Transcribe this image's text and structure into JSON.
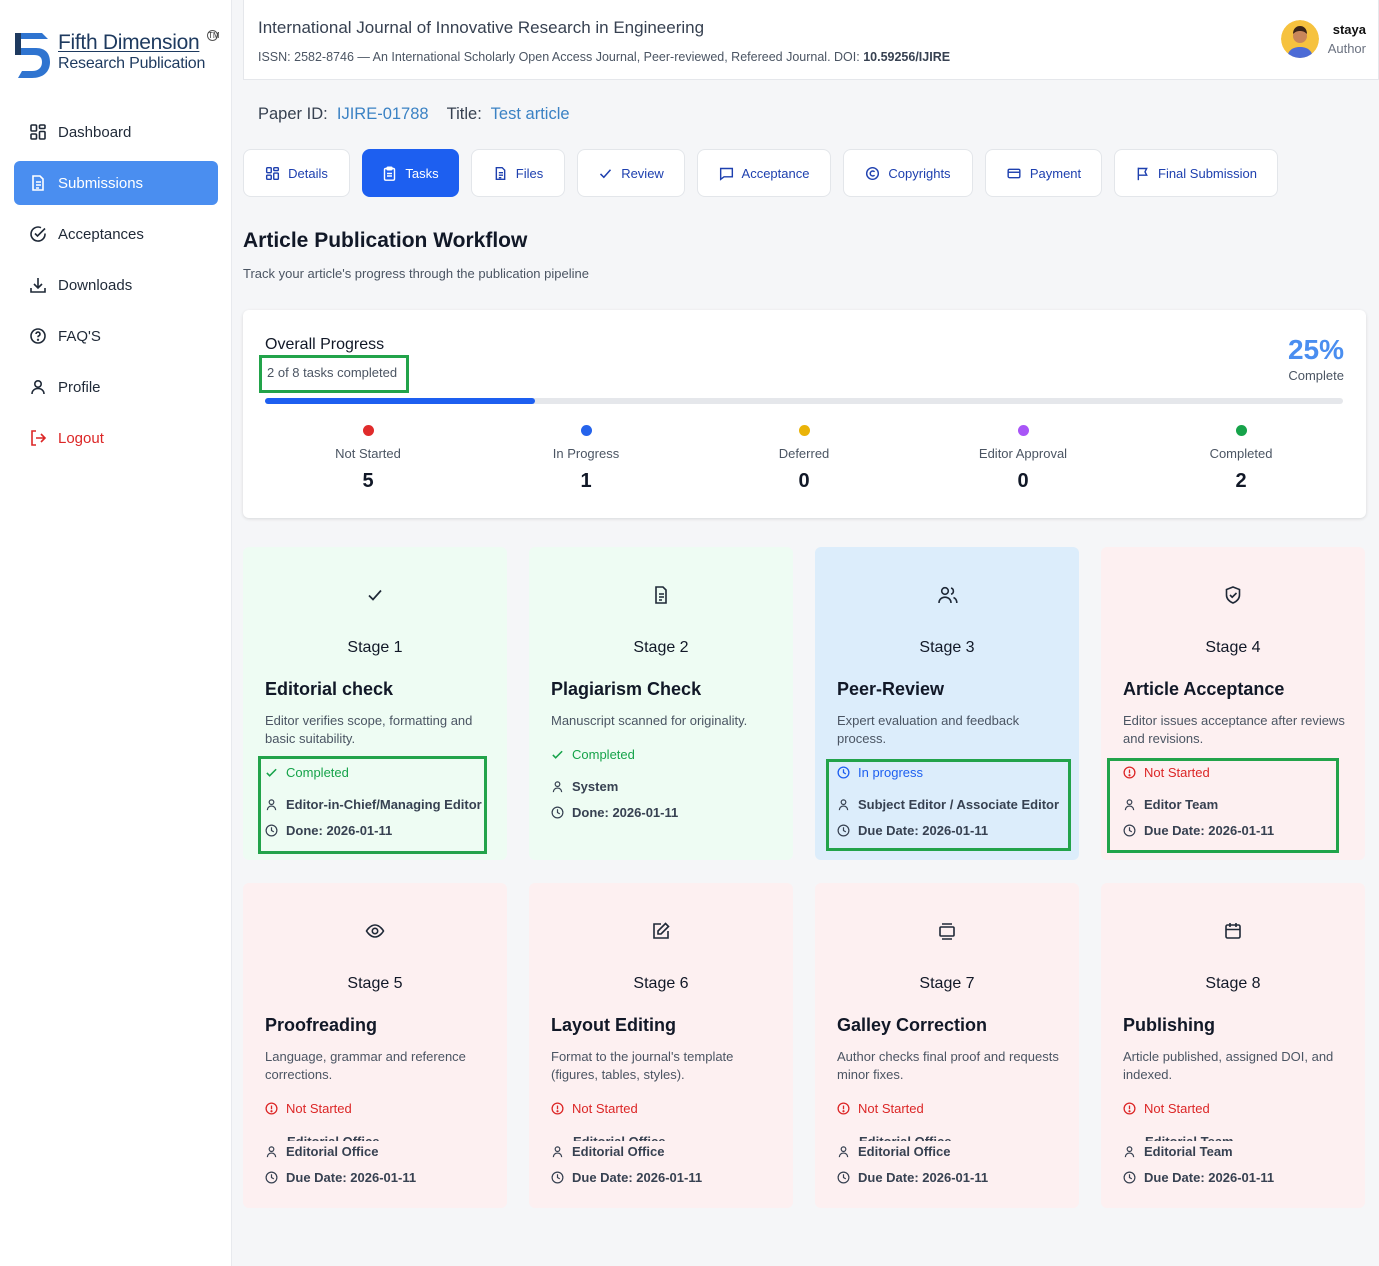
{
  "brand": {
    "name_line1": "Fifth Dimension",
    "name_line2": "Research Publication",
    "trademark": "TM",
    "colors": {
      "primary": "#1e3a5f",
      "accent": "#4a8ef0"
    }
  },
  "sidebar": {
    "items": [
      {
        "label": "Dashboard",
        "icon": "grid-icon"
      },
      {
        "label": "Submissions",
        "icon": "document-icon",
        "active": true
      },
      {
        "label": "Acceptances",
        "icon": "check-circle-icon"
      },
      {
        "label": "Downloads",
        "icon": "download-icon"
      },
      {
        "label": "FAQ'S",
        "icon": "question-circle-icon"
      },
      {
        "label": "Profile",
        "icon": "user-icon"
      },
      {
        "label": "Logout",
        "icon": "logout-icon"
      }
    ]
  },
  "header": {
    "journal_title": "International Journal of Innovative Research in Engineering",
    "journal_sub": "ISSN: 2582-8746 — An International Scholarly Open Access Journal, Peer-reviewed, Refereed Journal. DOI: ",
    "doi": "10.59256/IJIRE",
    "user_name": "staya",
    "user_role": "Author"
  },
  "paper": {
    "id_label": "Paper ID:",
    "id_value": "IJIRE-01788",
    "title_label": "Title:",
    "title_value": "Test article"
  },
  "tabs": [
    {
      "label": "Details",
      "icon": "grid-icon"
    },
    {
      "label": "Tasks",
      "icon": "clipboard-icon",
      "active": true
    },
    {
      "label": "Files",
      "icon": "file-icon"
    },
    {
      "label": "Review",
      "icon": "check-icon"
    },
    {
      "label": "Acceptance",
      "icon": "message-icon"
    },
    {
      "label": "Copyrights",
      "icon": "copyright-icon"
    },
    {
      "label": "Payment",
      "icon": "credit-card-icon"
    },
    {
      "label": "Final Submission",
      "icon": "flag-icon"
    }
  ],
  "workflow": {
    "title": "Article Publication Workflow",
    "subtitle": "Track your article's progress through the publication pipeline"
  },
  "progress": {
    "title": "Overall Progress",
    "count_text": "2 of 8 tasks completed",
    "percent_text": "25%",
    "percent_value": 0.25,
    "complete_label": "Complete",
    "stats": [
      {
        "label": "Not Started",
        "value": "5",
        "color": "#e02b2b"
      },
      {
        "label": "In Progress",
        "value": "1",
        "color": "#2563eb"
      },
      {
        "label": "Deferred",
        "value": "0",
        "color": "#eab308"
      },
      {
        "label": "Editor Approval",
        "value": "0",
        "color": "#a855f7"
      },
      {
        "label": "Completed",
        "value": "2",
        "color": "#16a34a"
      }
    ]
  },
  "stages": [
    {
      "num": "Stage 1",
      "name": "Editorial check",
      "desc": "Editor verifies scope, formatting and basic suitability.",
      "status": "Completed",
      "status_type": "completed",
      "assignee": "Editor-in-Chief/Managing Editor",
      "due": "Done: 2026-01-11",
      "theme": "green",
      "icon": "checkmark-icon"
    },
    {
      "num": "Stage 2",
      "name": "Plagiarism Check",
      "desc": "Manuscript scanned for originality.",
      "status": "Completed",
      "status_type": "completed",
      "assignee": "System",
      "due": "Done: 2026-01-11",
      "theme": "green",
      "icon": "document-icon"
    },
    {
      "num": "Stage 3",
      "name": "Peer-Review",
      "desc": "Expert evaluation and feedback process.",
      "status": "In progress",
      "status_type": "progress",
      "assignee": "Subject Editor / Associate Editor",
      "due": "Due Date: 2026-01-11",
      "theme": "blue",
      "icon": "users-icon"
    },
    {
      "num": "Stage 4",
      "name": "Article Acceptance",
      "desc": "Editor issues acceptance after reviews and revisions.",
      "status": "Not Started",
      "status_type": "notstarted",
      "assignee": "Editor Team",
      "due": "Due Date: 2026-01-11",
      "theme": "red",
      "icon": "shield-check-icon"
    },
    {
      "num": "Stage 5",
      "name": "Proofreading",
      "desc": "Language, grammar and reference corrections.",
      "status": "Not Started",
      "status_type": "notstarted",
      "assignee": "Editorial Office",
      "ghost": "Editorial Office",
      "due": "Due Date: 2026-01-11",
      "theme": "red",
      "icon": "eye-icon"
    },
    {
      "num": "Stage 6",
      "name": "Layout Editing",
      "desc": "Format to the journal's template (figures, tables, styles).",
      "status": "Not Started",
      "status_type": "notstarted",
      "assignee": "Editorial Office",
      "ghost": "Editorial Office",
      "due": "Due Date: 2026-01-11",
      "theme": "red",
      "icon": "edit-icon"
    },
    {
      "num": "Stage 7",
      "name": "Galley Correction",
      "desc": "Author checks final proof and requests minor fixes.",
      "status": "Not Started",
      "status_type": "notstarted",
      "assignee": "Editorial Office",
      "ghost": "Editorial Office",
      "due": "Due Date: 2026-01-11",
      "theme": "red",
      "icon": "layers-icon"
    },
    {
      "num": "Stage 8",
      "name": "Publishing",
      "desc": "Article published, assigned DOI, and indexed.",
      "status": "Not Started",
      "status_type": "notstarted",
      "assignee": "Editorial Team",
      "ghost": "Editorial Team",
      "due": "Due Date: 2026-01-11",
      "theme": "red",
      "icon": "calendar-icon"
    }
  ]
}
